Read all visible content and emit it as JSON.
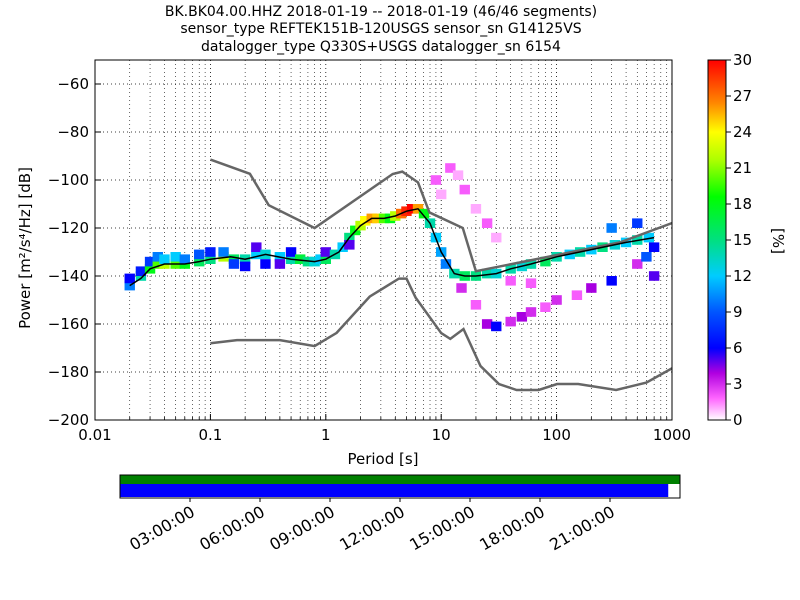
{
  "title": {
    "line1": "BK.BK04.00.HHZ   2018-01-19 -- 2018-01-19  (46/46 segments)",
    "line2": "sensor_type REFTEK151B-120USGS sensor_sn G14125VS",
    "line3": "datalogger_type Q330S+USGS datalogger_sn 6154"
  },
  "colors": {
    "nlnm_nhnm": "#666666",
    "mode_line": "#000000",
    "coverage_green": "#008000",
    "coverage_blue": "#0000ff",
    "grid": "#000000"
  },
  "chart_data": {
    "type": "heatmap",
    "xlabel": "Period [s]",
    "ylabel": "Power [m²/s⁴/Hz] [dB]",
    "x_scale": "log",
    "xlim": [
      0.01,
      1000
    ],
    "ylim": [
      -200,
      -50
    ],
    "x_ticks": [
      {
        "value": 0.01,
        "label": "0.01"
      },
      {
        "value": 0.1,
        "label": "0.1"
      },
      {
        "value": 1,
        "label": "1"
      },
      {
        "value": 10,
        "label": "10"
      },
      {
        "value": 100,
        "label": "100"
      },
      {
        "value": 1000,
        "label": "1000"
      }
    ],
    "y_ticks": [
      {
        "value": -60,
        "label": "−60"
      },
      {
        "value": -80,
        "label": "−80"
      },
      {
        "value": -100,
        "label": "−100"
      },
      {
        "value": -120,
        "label": "−120"
      },
      {
        "value": -140,
        "label": "−140"
      },
      {
        "value": -160,
        "label": "−160"
      },
      {
        "value": -180,
        "label": "−180"
      },
      {
        "value": -200,
        "label": "−200"
      }
    ],
    "grid": true,
    "colorbar": {
      "label": "[%]",
      "range": [
        0,
        30
      ],
      "ticks": [
        {
          "value": 0,
          "label": "0"
        },
        {
          "value": 3,
          "label": "3"
        },
        {
          "value": 6,
          "label": "6"
        },
        {
          "value": 9,
          "label": "9"
        },
        {
          "value": 12,
          "label": "12"
        },
        {
          "value": 15,
          "label": "15"
        },
        {
          "value": 18,
          "label": "18"
        },
        {
          "value": 21,
          "label": "21"
        },
        {
          "value": 24,
          "label": "24"
        },
        {
          "value": 27,
          "label": "27"
        },
        {
          "value": 30,
          "label": "30"
        }
      ]
    },
    "nhnm": [
      [
        0.1,
        -91.5
      ],
      [
        0.22,
        -97.4
      ],
      [
        0.32,
        -110.5
      ],
      [
        0.8,
        -120
      ],
      [
        3.8,
        -97.5
      ],
      [
        4.6,
        -96.5
      ],
      [
        6.3,
        -101
      ],
      [
        7.9,
        -113.5
      ],
      [
        15.4,
        -120
      ],
      [
        20,
        -138
      ],
      [
        354.8,
        -126
      ],
      [
        10000,
        -100
      ]
    ],
    "nlnm": [
      [
        0.1,
        -168
      ],
      [
        0.17,
        -166.7
      ],
      [
        0.4,
        -166.7
      ],
      [
        0.8,
        -169.2
      ],
      [
        1.24,
        -163.7
      ],
      [
        2.4,
        -148.6
      ],
      [
        4.3,
        -141.1
      ],
      [
        5,
        -141.1
      ],
      [
        6,
        -149
      ],
      [
        10,
        -163.8
      ],
      [
        12,
        -166.2
      ],
      [
        15.6,
        -162.1
      ],
      [
        21.9,
        -177.5
      ],
      [
        31.6,
        -185
      ],
      [
        45,
        -187.5
      ],
      [
        70,
        -187.5
      ],
      [
        101,
        -185
      ],
      [
        154,
        -185
      ],
      [
        328,
        -187.5
      ],
      [
        600,
        -184.4
      ],
      [
        10000,
        -151.5
      ]
    ],
    "mode_curve": [
      [
        0.02,
        -144
      ],
      [
        0.025,
        -141
      ],
      [
        0.03,
        -137
      ],
      [
        0.04,
        -135
      ],
      [
        0.06,
        -135
      ],
      [
        0.08,
        -134
      ],
      [
        0.1,
        -133
      ],
      [
        0.15,
        -132
      ],
      [
        0.2,
        -133
      ],
      [
        0.3,
        -131
      ],
      [
        0.5,
        -133
      ],
      [
        0.8,
        -134
      ],
      [
        1.0,
        -133
      ],
      [
        1.3,
        -130
      ],
      [
        1.6,
        -124
      ],
      [
        2.0,
        -119
      ],
      [
        2.5,
        -116
      ],
      [
        3.2,
        -116
      ],
      [
        4.0,
        -115
      ],
      [
        5.0,
        -113
      ],
      [
        6.3,
        -112
      ],
      [
        8.0,
        -118
      ],
      [
        10,
        -130
      ],
      [
        13,
        -139
      ],
      [
        16,
        -140
      ],
      [
        20,
        -140
      ],
      [
        30,
        -139
      ],
      [
        40,
        -137
      ],
      [
        60,
        -135
      ],
      [
        100,
        -132
      ],
      [
        200,
        -129
      ],
      [
        400,
        -126
      ],
      [
        700,
        -124
      ]
    ],
    "density_cells": [
      {
        "period": 0.02,
        "power": -144,
        "percent": 10
      },
      {
        "period": 0.02,
        "power": -141,
        "percent": 6
      },
      {
        "period": 0.025,
        "power": -140,
        "percent": 14
      },
      {
        "period": 0.025,
        "power": -138,
        "percent": 7
      },
      {
        "period": 0.03,
        "power": -137,
        "percent": 18
      },
      {
        "period": 0.03,
        "power": -134,
        "percent": 8
      },
      {
        "period": 0.035,
        "power": -135,
        "percent": 20
      },
      {
        "period": 0.035,
        "power": -132,
        "percent": 10
      },
      {
        "period": 0.04,
        "power": -135,
        "percent": 22
      },
      {
        "period": 0.04,
        "power": -133,
        "percent": 12
      },
      {
        "period": 0.05,
        "power": -135,
        "percent": 20
      },
      {
        "period": 0.05,
        "power": -132,
        "percent": 12
      },
      {
        "period": 0.06,
        "power": -135,
        "percent": 18
      },
      {
        "period": 0.06,
        "power": -133,
        "percent": 10
      },
      {
        "period": 0.08,
        "power": -134,
        "percent": 16
      },
      {
        "period": 0.08,
        "power": -131,
        "percent": 9
      },
      {
        "period": 0.1,
        "power": -133,
        "percent": 15
      },
      {
        "period": 0.1,
        "power": -130,
        "percent": 7
      },
      {
        "period": 0.13,
        "power": -132,
        "percent": 22
      },
      {
        "period": 0.13,
        "power": -130,
        "percent": 10
      },
      {
        "period": 0.16,
        "power": -133,
        "percent": 16
      },
      {
        "period": 0.16,
        "power": -135,
        "percent": 8
      },
      {
        "period": 0.2,
        "power": -133,
        "percent": 14
      },
      {
        "period": 0.2,
        "power": -136,
        "percent": 6
      },
      {
        "period": 0.25,
        "power": -131,
        "percent": 12
      },
      {
        "period": 0.25,
        "power": -128,
        "percent": 5
      },
      {
        "period": 0.3,
        "power": -131,
        "percent": 13
      },
      {
        "period": 0.3,
        "power": -135,
        "percent": 6
      },
      {
        "period": 0.4,
        "power": -132,
        "percent": 12
      },
      {
        "period": 0.4,
        "power": -135,
        "percent": 5
      },
      {
        "period": 0.5,
        "power": -133,
        "percent": 14
      },
      {
        "period": 0.5,
        "power": -130,
        "percent": 6
      },
      {
        "period": 0.6,
        "power": -133,
        "percent": 17
      },
      {
        "period": 0.7,
        "power": -134,
        "percent": 15
      },
      {
        "period": 0.8,
        "power": -134,
        "percent": 13
      },
      {
        "period": 0.9,
        "power": -133,
        "percent": 12
      },
      {
        "period": 1.0,
        "power": -133,
        "percent": 16
      },
      {
        "period": 1.0,
        "power": -130,
        "percent": 5
      },
      {
        "period": 1.2,
        "power": -131,
        "percent": 14
      },
      {
        "period": 1.4,
        "power": -128,
        "percent": 12
      },
      {
        "period": 1.6,
        "power": -124,
        "percent": 15
      },
      {
        "period": 1.6,
        "power": -127,
        "percent": 5
      },
      {
        "period": 1.8,
        "power": -121,
        "percent": 18
      },
      {
        "period": 2.0,
        "power": -119,
        "percent": 22
      },
      {
        "period": 2.2,
        "power": -117,
        "percent": 24
      },
      {
        "period": 2.5,
        "power": -116,
        "percent": 26
      },
      {
        "period": 2.8,
        "power": -116,
        "percent": 25
      },
      {
        "period": 3.2,
        "power": -116,
        "percent": 20
      },
      {
        "period": 3.6,
        "power": -116,
        "percent": 18
      },
      {
        "period": 4.0,
        "power": -115,
        "percent": 22
      },
      {
        "period": 4.5,
        "power": -114,
        "percent": 27
      },
      {
        "period": 5.0,
        "power": -113,
        "percent": 29
      },
      {
        "period": 5.6,
        "power": -112,
        "percent": 30
      },
      {
        "period": 6.3,
        "power": -112,
        "percent": 26
      },
      {
        "period": 7.1,
        "power": -114,
        "percent": 18
      },
      {
        "period": 8.0,
        "power": -118,
        "percent": 14
      },
      {
        "period": 9.0,
        "power": -124,
        "percent": 12
      },
      {
        "period": 10,
        "power": -130,
        "percent": 11
      },
      {
        "period": 11,
        "power": -135,
        "percent": 10
      },
      {
        "period": 13,
        "power": -139,
        "percent": 14
      },
      {
        "period": 16,
        "power": -140,
        "percent": 16
      },
      {
        "period": 20,
        "power": -140,
        "percent": 15
      },
      {
        "period": 25,
        "power": -139,
        "percent": 14
      },
      {
        "period": 30,
        "power": -139,
        "percent": 13
      },
      {
        "period": 40,
        "power": -137,
        "percent": 14
      },
      {
        "period": 50,
        "power": -136,
        "percent": 13
      },
      {
        "period": 60,
        "power": -135,
        "percent": 14
      },
      {
        "period": 80,
        "power": -134,
        "percent": 16
      },
      {
        "period": 100,
        "power": -132,
        "percent": 14
      },
      {
        "period": 130,
        "power": -131,
        "percent": 12
      },
      {
        "period": 160,
        "power": -130,
        "percent": 14
      },
      {
        "period": 200,
        "power": -129,
        "percent": 12
      },
      {
        "period": 250,
        "power": -128,
        "percent": 15
      },
      {
        "period": 320,
        "power": -127,
        "percent": 13
      },
      {
        "period": 400,
        "power": -126,
        "percent": 12
      },
      {
        "period": 500,
        "power": -125,
        "percent": 14
      },
      {
        "period": 630,
        "power": -124,
        "percent": 12
      },
      {
        "period": 12,
        "power": -95,
        "percent": 2
      },
      {
        "period": 14,
        "power": -98,
        "percent": 1
      },
      {
        "period": 16,
        "power": -104,
        "percent": 2
      },
      {
        "period": 20,
        "power": -112,
        "percent": 1
      },
      {
        "period": 25,
        "power": -118,
        "percent": 2
      },
      {
        "period": 30,
        "power": -124,
        "percent": 1
      },
      {
        "period": 9,
        "power": -100,
        "percent": 2
      },
      {
        "period": 10,
        "power": -106,
        "percent": 1
      },
      {
        "period": 15,
        "power": -145,
        "percent": 3
      },
      {
        "period": 20,
        "power": -152,
        "percent": 2
      },
      {
        "period": 25,
        "power": -160,
        "percent": 4
      },
      {
        "period": 30,
        "power": -161,
        "percent": 6
      },
      {
        "period": 40,
        "power": -159,
        "percent": 3
      },
      {
        "period": 50,
        "power": -157,
        "percent": 4
      },
      {
        "period": 60,
        "power": -155,
        "percent": 3
      },
      {
        "period": 80,
        "power": -153,
        "percent": 2
      },
      {
        "period": 100,
        "power": -150,
        "percent": 3
      },
      {
        "period": 150,
        "power": -148,
        "percent": 2
      },
      {
        "period": 200,
        "power": -145,
        "percent": 4
      },
      {
        "period": 300,
        "power": -142,
        "percent": 6
      },
      {
        "period": 500,
        "power": -135,
        "percent": 3
      },
      {
        "period": 700,
        "power": -140,
        "percent": 5
      },
      {
        "period": 40,
        "power": -142,
        "percent": 2
      },
      {
        "period": 60,
        "power": -143,
        "percent": 2
      },
      {
        "period": 300,
        "power": -120,
        "percent": 10
      },
      {
        "period": 500,
        "power": -118,
        "percent": 8
      },
      {
        "period": 700,
        "power": -128,
        "percent": 6
      },
      {
        "period": 600,
        "power": -132,
        "percent": 9
      }
    ]
  },
  "time_axis": {
    "labels": [
      "03:00:00",
      "06:00:00",
      "09:00:00",
      "12:00:00",
      "15:00:00",
      "18:00:00",
      "21:00:00"
    ],
    "hours": [
      3,
      6,
      9,
      12,
      15,
      18,
      21
    ],
    "span_hours": 24,
    "data_coverage_end_fraction": 0.979
  }
}
